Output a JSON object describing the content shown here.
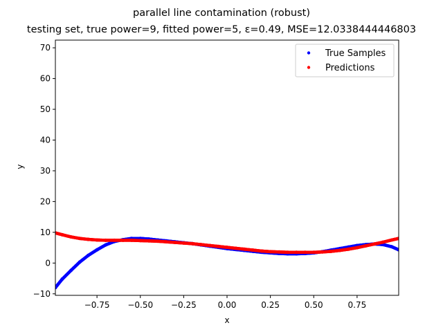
{
  "chart_data": {
    "type": "scatter",
    "title": "parallel line contamination (robust)",
    "subtitle": "testing set, true power=9, fitted power=5, ε=0.49, MSE=12.0338444446803",
    "xlabel": "x",
    "ylabel": "y",
    "xlim": [
      -0.99,
      0.99
    ],
    "ylim": [
      -10.5,
      72.5
    ],
    "xticks": [
      -0.75,
      -0.5,
      -0.25,
      0.0,
      0.25,
      0.5,
      0.75
    ],
    "xtick_labels": [
      "−0.75",
      "−0.50",
      "−0.25",
      "0.00",
      "0.25",
      "0.50",
      "0.75"
    ],
    "yticks": [
      -10,
      0,
      10,
      20,
      30,
      40,
      50,
      60,
      70
    ],
    "ytick_labels": [
      "−10",
      "0",
      "10",
      "20",
      "30",
      "40",
      "50",
      "60",
      "70"
    ],
    "grid": false,
    "legend_position": "top-right",
    "series": [
      {
        "name": "True Samples",
        "color": "#0000ff",
        "x": [
          -0.99,
          -0.95,
          -0.9,
          -0.85,
          -0.8,
          -0.75,
          -0.7,
          -0.65,
          -0.6,
          -0.55,
          -0.5,
          -0.45,
          -0.4,
          -0.35,
          -0.3,
          -0.25,
          -0.2,
          -0.15,
          -0.1,
          -0.05,
          0.0,
          0.05,
          0.1,
          0.15,
          0.2,
          0.25,
          0.3,
          0.35,
          0.4,
          0.45,
          0.5,
          0.55,
          0.6,
          0.65,
          0.7,
          0.75,
          0.8,
          0.85,
          0.9,
          0.95,
          0.99
        ],
        "y": [
          -8.0,
          -5.2,
          -2.4,
          0.3,
          2.5,
          4.3,
          5.9,
          7.0,
          7.6,
          8.0,
          8.0,
          7.8,
          7.5,
          7.2,
          6.9,
          6.6,
          6.3,
          5.9,
          5.5,
          5.1,
          4.7,
          4.4,
          4.1,
          3.8,
          3.5,
          3.3,
          3.1,
          3.0,
          3.0,
          3.1,
          3.3,
          3.7,
          4.2,
          4.7,
          5.2,
          5.7,
          6.0,
          6.2,
          6.0,
          5.3,
          4.3
        ]
      },
      {
        "name": "Predictions",
        "color": "#ff0000",
        "x": [
          -0.99,
          -0.95,
          -0.9,
          -0.85,
          -0.8,
          -0.75,
          -0.7,
          -0.65,
          -0.6,
          -0.55,
          -0.5,
          -0.45,
          -0.4,
          -0.35,
          -0.3,
          -0.25,
          -0.2,
          -0.15,
          -0.1,
          -0.05,
          0.0,
          0.05,
          0.1,
          0.15,
          0.2,
          0.25,
          0.3,
          0.35,
          0.4,
          0.45,
          0.5,
          0.55,
          0.6,
          0.65,
          0.7,
          0.75,
          0.8,
          0.85,
          0.9,
          0.95,
          0.99
        ],
        "y": [
          9.8,
          9.2,
          8.5,
          8.0,
          7.7,
          7.5,
          7.4,
          7.4,
          7.4,
          7.4,
          7.3,
          7.2,
          7.1,
          6.9,
          6.7,
          6.5,
          6.3,
          6.0,
          5.7,
          5.4,
          5.1,
          4.8,
          4.5,
          4.2,
          3.9,
          3.7,
          3.6,
          3.5,
          3.5,
          3.5,
          3.5,
          3.6,
          3.8,
          4.1,
          4.5,
          5.0,
          5.6,
          6.2,
          6.8,
          7.5,
          8.0
        ]
      }
    ]
  }
}
